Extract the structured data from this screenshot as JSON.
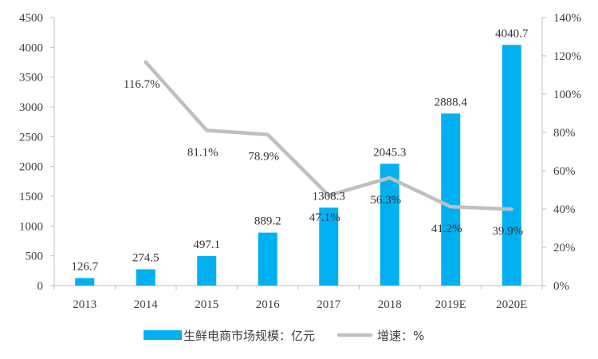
{
  "chart_data": {
    "type": "bar",
    "categories": [
      "2013",
      "2014",
      "2015",
      "2016",
      "2017",
      "2018",
      "2019E",
      "2020E"
    ],
    "series": [
      {
        "name": "生鲜电商市场规模：亿元",
        "type": "bar",
        "axis": "left",
        "color": "#00B0F0",
        "values": [
          126.7,
          274.5,
          497.1,
          889.2,
          1308.3,
          2045.3,
          2888.4,
          4040.7
        ],
        "labels": [
          "126.7",
          "274.5",
          "497.1",
          "889.2",
          "1308.3",
          "2045.3",
          "2888.4",
          "4040.7"
        ]
      },
      {
        "name": "增速：%",
        "type": "line",
        "axis": "right",
        "color": "#BFBFBF",
        "values": [
          null,
          116.7,
          81.1,
          78.9,
          47.1,
          56.3,
          41.2,
          39.9
        ],
        "labels": [
          "",
          "116.7%",
          "81.1%",
          "78.9%",
          "47.1%",
          "56.3%",
          "41.2%",
          "39.9%"
        ]
      }
    ],
    "y_left": {
      "min": 0,
      "max": 4500,
      "ticks": [
        "0",
        "500",
        "1000",
        "1500",
        "2000",
        "2500",
        "3000",
        "3500",
        "4000",
        "4500"
      ]
    },
    "y_right": {
      "min": 0,
      "max": 140,
      "ticks": [
        "0%",
        "20%",
        "40%",
        "60%",
        "80%",
        "100%",
        "120%",
        "140%"
      ]
    },
    "grid": false,
    "legend_position": "bottom"
  }
}
